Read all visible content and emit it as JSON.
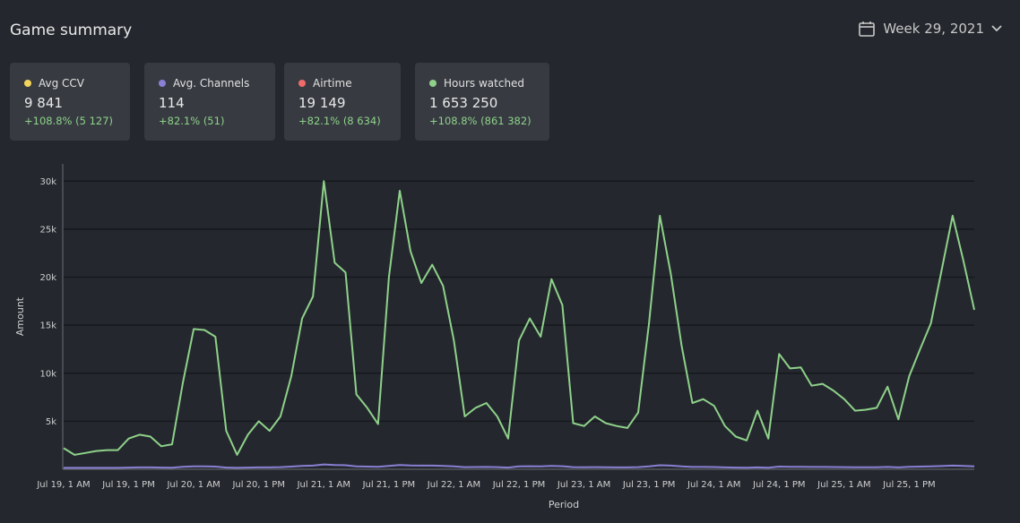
{
  "header": {
    "title": "Game summary",
    "period": "Week 29, 2021"
  },
  "cards": [
    {
      "label": "Avg CCV",
      "color": "#f2d35b",
      "value": "9 841",
      "change": "+108.8% (5 127)"
    },
    {
      "label": "Avg. Channels",
      "color": "#8a7fd4",
      "value": "114",
      "change": "+82.1% (51)"
    },
    {
      "label": "Airtime",
      "color": "#ef6b6b",
      "value": "19 149",
      "change": "+82.1% (8 634)"
    },
    {
      "label": "Hours watched",
      "color": "#8fd18a",
      "value": "1 653 250",
      "change": "+108.8% (861 382)"
    }
  ],
  "chart_data": {
    "type": "line",
    "x_label": "Period",
    "y_label": "Amount",
    "grid": true,
    "categories": [
      "Jul 19, 1 AM",
      null,
      null,
      null,
      null,
      null,
      "Jul 19, 1 PM",
      null,
      null,
      null,
      null,
      null,
      "Jul 20, 1 AM",
      null,
      null,
      null,
      null,
      null,
      "Jul 20, 1 PM",
      null,
      null,
      null,
      null,
      null,
      "Jul 21, 1 AM",
      null,
      null,
      null,
      null,
      null,
      "Jul 21, 1 PM",
      null,
      null,
      null,
      null,
      null,
      "Jul 22, 1 AM",
      null,
      null,
      null,
      null,
      null,
      "Jul 22, 1 PM",
      null,
      null,
      null,
      null,
      null,
      "Jul 23, 1 AM",
      null,
      null,
      null,
      null,
      null,
      "Jul 23, 1 PM",
      null,
      null,
      null,
      null,
      null,
      "Jul 24, 1 AM",
      null,
      null,
      null,
      null,
      null,
      "Jul 24, 1 PM",
      null,
      null,
      null,
      null,
      null,
      "Jul 25, 1 AM",
      null,
      null,
      null,
      null,
      null,
      "Jul 25, 1 PM",
      null,
      null,
      null,
      null,
      null,
      null
    ],
    "series": [
      {
        "color": "#8fd18a",
        "values": [
          2200,
          1500,
          1700,
          1900,
          2000,
          2000,
          3200,
          3600,
          3400,
          2400,
          2600,
          9000,
          14600,
          14500,
          13800,
          4000,
          1500,
          3600,
          5000,
          4000,
          5500,
          9700,
          15700,
          18000,
          30000,
          21500,
          20500,
          7800,
          6400,
          4700,
          20000,
          29000,
          22700,
          19400,
          21300,
          19100,
          13400,
          5500,
          6400,
          6900,
          5500,
          3200,
          13400,
          15700,
          13800,
          19800,
          17100,
          4800,
          4500,
          5500,
          4800,
          4500,
          4300,
          5900,
          15200,
          26400,
          20400,
          12900,
          6900,
          7300,
          6600,
          4500,
          3400,
          3000,
          6100,
          3200,
          12000,
          10500,
          10600,
          8700,
          8900,
          8200,
          7300,
          6100,
          6200,
          6400,
          8600,
          5200,
          9700,
          12500,
          15200,
          20800,
          26400,
          21700,
          16600
        ]
      },
      {
        "color": "#8a7fd4",
        "values": [
          150,
          150,
          150,
          150,
          150,
          150,
          180,
          200,
          200,
          180,
          170,
          250,
          300,
          300,
          280,
          180,
          150,
          180,
          200,
          200,
          220,
          280,
          350,
          380,
          500,
          450,
          420,
          300,
          280,
          250,
          350,
          450,
          400,
          380,
          380,
          350,
          300,
          220,
          230,
          240,
          220,
          180,
          300,
          320,
          300,
          350,
          320,
          220,
          210,
          220,
          210,
          200,
          200,
          220,
          300,
          420,
          380,
          300,
          240,
          240,
          230,
          200,
          180,
          170,
          200,
          170,
          280,
          260,
          260,
          240,
          240,
          230,
          220,
          210,
          210,
          210,
          240,
          200,
          250,
          280,
          300,
          340,
          380,
          350,
          300
        ]
      }
    ],
    "ylim": [
      0,
      31800
    ],
    "yticks": [
      {
        "value": 5000,
        "label": "5k"
      },
      {
        "value": 10000,
        "label": "10k"
      },
      {
        "value": 15000,
        "label": "15k"
      },
      {
        "value": 20000,
        "label": "20k"
      },
      {
        "value": 25000,
        "label": "25k"
      },
      {
        "value": 30000,
        "label": "30k"
      }
    ]
  }
}
